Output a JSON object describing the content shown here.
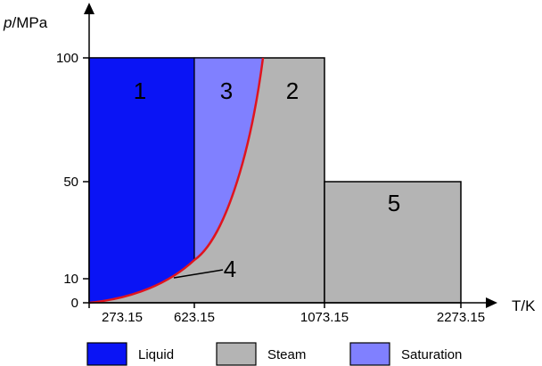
{
  "axes": {
    "y_label": {
      "var": "p",
      "unit": "/MPa"
    },
    "x_label": "T/K",
    "y_ticks": [
      "100",
      "50",
      "10",
      "0"
    ],
    "x_ticks": [
      "273.15",
      "623.15",
      "1073.15",
      "2273.15"
    ]
  },
  "regions": [
    "1",
    "2",
    "3",
    "4",
    "5"
  ],
  "legend": [
    "Liquid",
    "Steam",
    "Saturation"
  ]
}
